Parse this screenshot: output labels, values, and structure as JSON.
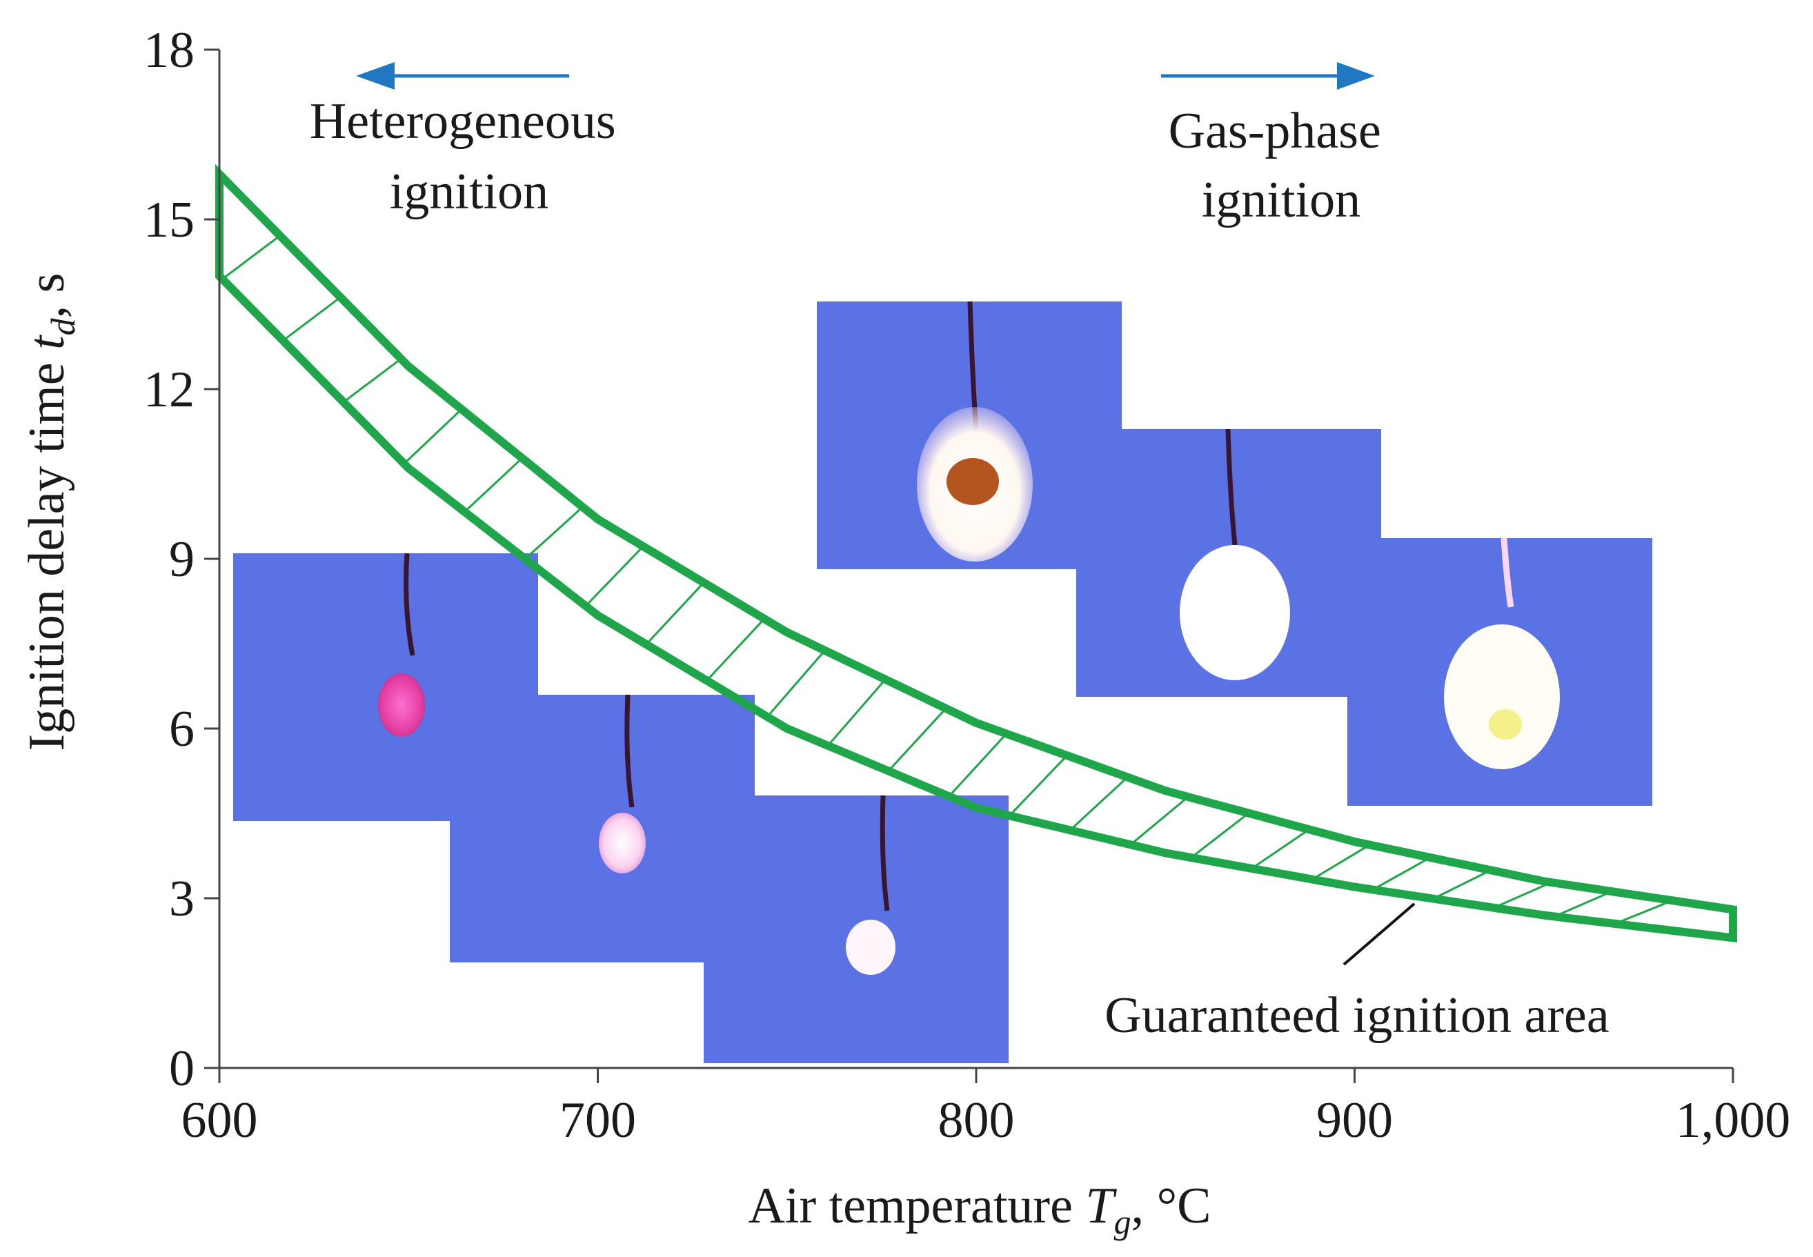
{
  "chart_data": {
    "type": "area",
    "xlabel": {
      "prefix": "Air temperature ",
      "var": "T",
      "sub": "g",
      "suffix": ", °C"
    },
    "ylabel": {
      "prefix": "Ignition delay time ",
      "var": "t",
      "sub": "d",
      "suffix": ", s"
    },
    "xlim": [
      600,
      1000
    ],
    "ylim": [
      0,
      18
    ],
    "xticks": [
      600,
      700,
      800,
      900,
      1000
    ],
    "xtick_labels": [
      "600",
      "700",
      "800",
      "900",
      "1,000"
    ],
    "yticks": [
      0,
      3,
      6,
      9,
      12,
      15,
      18
    ],
    "ytick_labels": [
      "0",
      "3",
      "6",
      "9",
      "12",
      "15",
      "18"
    ],
    "grid": false,
    "series": [
      {
        "role": "upper",
        "x": [
          600,
          650,
          700,
          750,
          800,
          850,
          900,
          950,
          1000
        ],
        "y": [
          15.8,
          12.4,
          9.7,
          7.7,
          6.1,
          4.9,
          4.0,
          3.3,
          2.8
        ]
      },
      {
        "role": "lower",
        "x": [
          600,
          650,
          700,
          750,
          800,
          850,
          900,
          950,
          1000
        ],
        "y": [
          14.0,
          10.6,
          8.0,
          6.0,
          4.6,
          3.8,
          3.2,
          2.7,
          2.3
        ]
      }
    ],
    "annotations": {
      "left_region": [
        "Heterogeneous",
        "ignition"
      ],
      "right_region": [
        "Gas-phase",
        "ignition"
      ],
      "area_label": "Guaranteed ignition area"
    },
    "colors": {
      "band": "#1fa64a",
      "arrow": "#1f78c1",
      "photo_bg": "#5b72e4",
      "axis": "#333333"
    }
  }
}
